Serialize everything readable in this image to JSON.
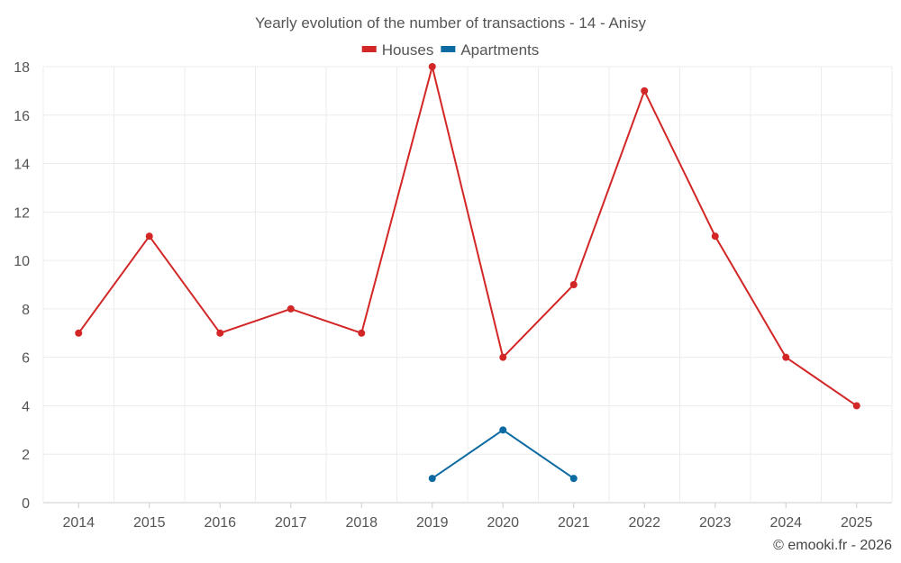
{
  "colors": {
    "houses": "#d32626",
    "apartments": "#0a6aa1"
  },
  "credit": "© emooki.fr - 2026",
  "chart_data": {
    "type": "line",
    "title": "Yearly evolution of the number of transactions - 14 - Anisy",
    "xlabel": "",
    "ylabel": "",
    "categories": [
      "2014",
      "2015",
      "2016",
      "2017",
      "2018",
      "2019",
      "2020",
      "2021",
      "2022",
      "2023",
      "2024",
      "2025"
    ],
    "ylim": [
      0,
      18
    ],
    "yticks": [
      "0",
      "2",
      "4",
      "6",
      "8",
      "10",
      "12",
      "14",
      "16",
      "18"
    ],
    "grid": true,
    "legend_position": "top-center",
    "series": [
      {
        "name": "Houses",
        "color_key": "houses",
        "values": [
          7,
          11,
          7,
          8,
          7,
          18,
          6,
          9,
          17,
          11,
          6,
          4
        ]
      },
      {
        "name": "Apartments",
        "color_key": "apartments",
        "values": [
          null,
          null,
          null,
          null,
          null,
          1,
          3,
          1,
          null,
          null,
          null,
          null
        ]
      }
    ]
  }
}
